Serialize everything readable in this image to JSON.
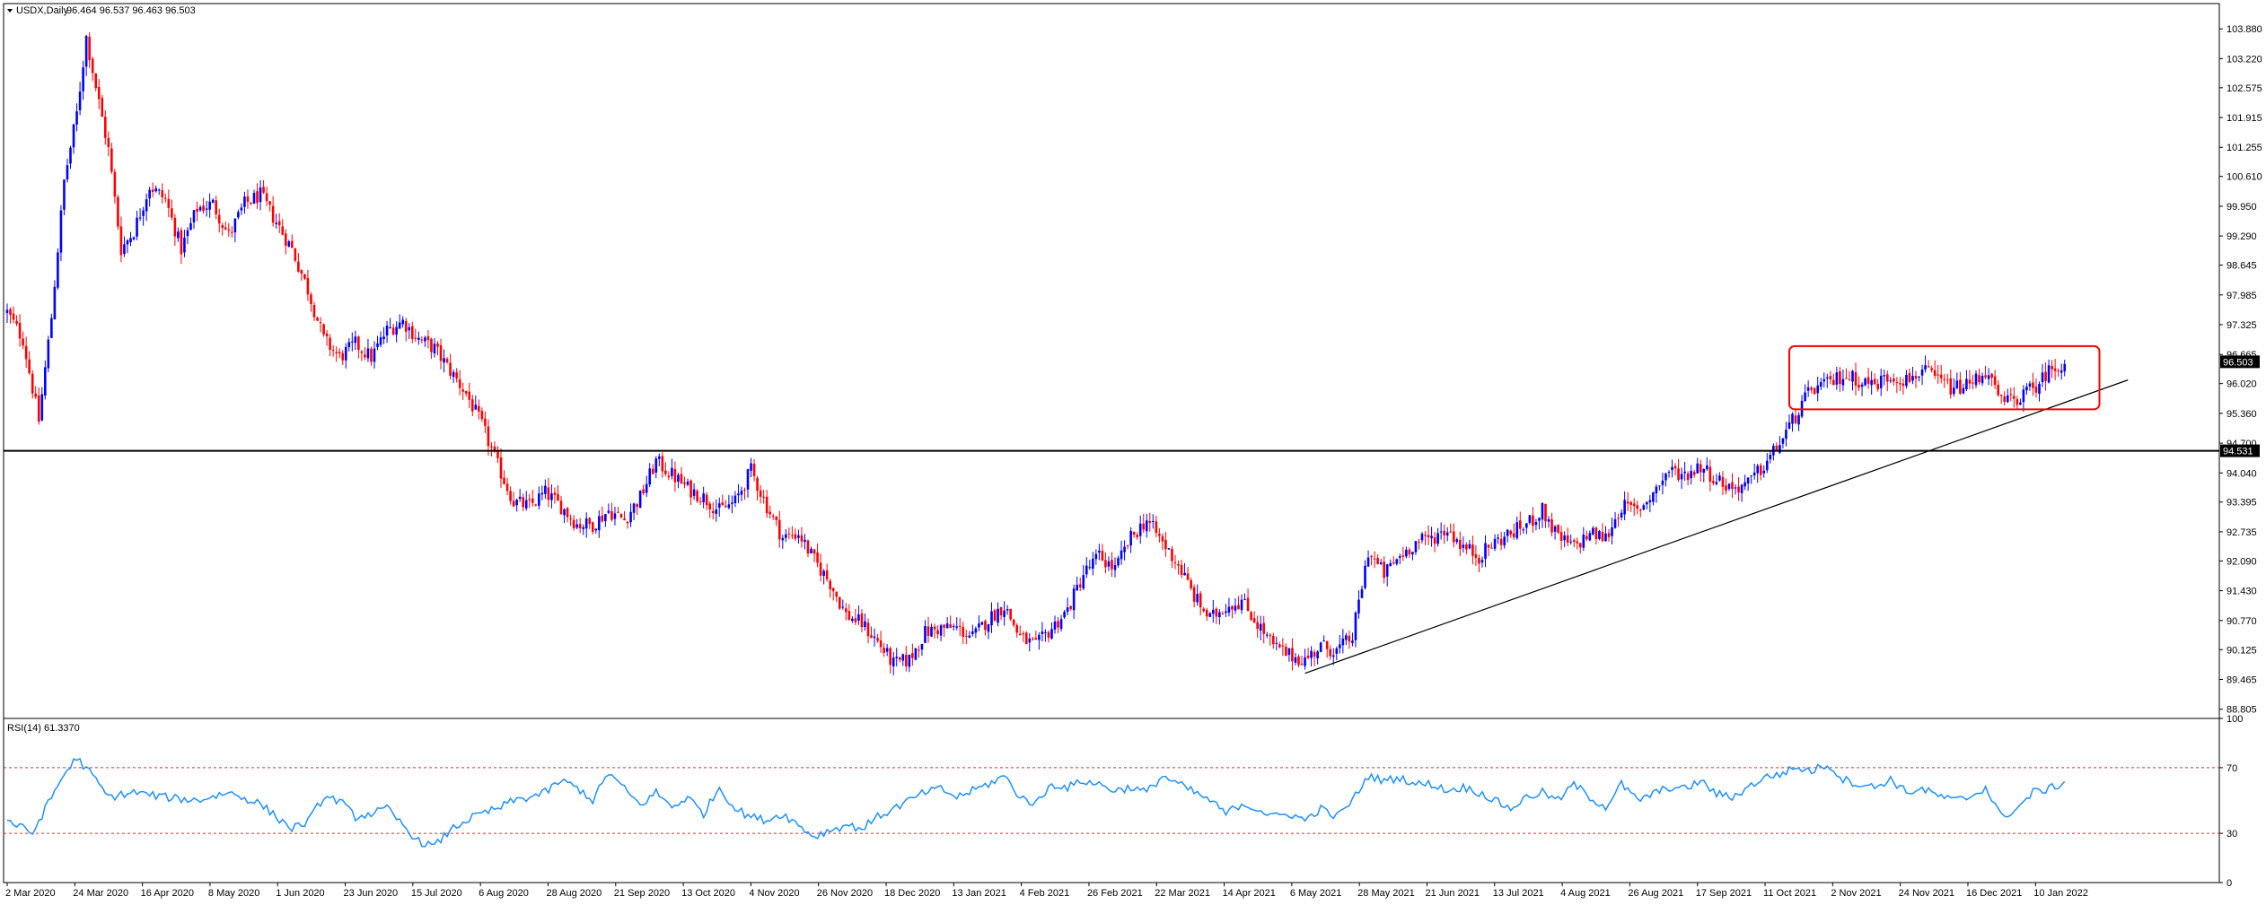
{
  "window": {
    "title": "USDX,Daily",
    "ohlc": "96.464 96.537 96.463 96.503"
  },
  "colors": {
    "bull": "#0000ff",
    "bear": "#ff0000",
    "rsi_line": "#1e90ff",
    "rsi_levels": "#d83030",
    "box": "#ff0000",
    "hline": "#000000",
    "trendline": "#000000"
  },
  "chart_data": [
    {
      "type": "candlestick",
      "title": "USDX,Daily",
      "ylim": [
        88.6,
        104.4
      ],
      "price_ticks": [
        "103.880",
        "103.220",
        "102.575",
        "101.915",
        "101.255",
        "100.610",
        "99.950",
        "99.290",
        "98.645",
        "97.985",
        "97.325",
        "96.665",
        "96.020",
        "95.360",
        "94.700",
        "94.040",
        "93.395",
        "92.735",
        "92.090",
        "91.430",
        "90.770",
        "90.125",
        "89.465",
        "88.805"
      ],
      "current_price_label": "96.503",
      "hline_label": "94.531",
      "date_ticks": [
        "2 Mar 2020",
        "24 Mar 2020",
        "16 Apr 2020",
        "8 May 2020",
        "1 Jun 2020",
        "23 Jun 2020",
        "15 Jul 2020",
        "6 Aug 2020",
        "28 Aug 2020",
        "21 Sep 2020",
        "13 Oct 2020",
        "4 Nov 2020",
        "26 Nov 2020",
        "18 Dec 2020",
        "13 Jan 2021",
        "4 Feb 2021",
        "26 Feb 2021",
        "22 Mar 2021",
        "14 Apr 2021",
        "6 May 2021",
        "28 May 2021",
        "21 Jun 2021",
        "13 Jul 2021",
        "4 Aug 2021",
        "26 Aug 2021",
        "17 Sep 2021",
        "11 Oct 2021",
        "2 Nov 2021",
        "24 Nov 2021",
        "16 Dec 2021",
        "10 Jan 2022"
      ],
      "price_path": [
        [
          0,
          97.6
        ],
        [
          5,
          97.0
        ],
        [
          10,
          95.2
        ],
        [
          14,
          97.5
        ],
        [
          18,
          100.5
        ],
        [
          22,
          102.0
        ],
        [
          25,
          103.7
        ],
        [
          28,
          102.6
        ],
        [
          32,
          101.2
        ],
        [
          36,
          99.0
        ],
        [
          40,
          99.4
        ],
        [
          45,
          100.4
        ],
        [
          50,
          100.1
        ],
        [
          55,
          99.0
        ],
        [
          60,
          99.9
        ],
        [
          65,
          100.0
        ],
        [
          70,
          99.3
        ],
        [
          75,
          100.0
        ],
        [
          80,
          100.2
        ],
        [
          85,
          99.6
        ],
        [
          90,
          99.0
        ],
        [
          95,
          98.1
        ],
        [
          100,
          97.0
        ],
        [
          105,
          96.6
        ],
        [
          110,
          96.9
        ],
        [
          115,
          96.6
        ],
        [
          120,
          97.2
        ],
        [
          125,
          97.4
        ],
        [
          130,
          97.0
        ],
        [
          135,
          96.8
        ],
        [
          140,
          96.3
        ],
        [
          145,
          95.8
        ],
        [
          150,
          95.1
        ],
        [
          155,
          94.2
        ],
        [
          160,
          93.4
        ],
        [
          165,
          93.3
        ],
        [
          170,
          93.6
        ],
        [
          175,
          93.3
        ],
        [
          180,
          92.9
        ],
        [
          185,
          92.9
        ],
        [
          190,
          93.2
        ],
        [
          195,
          93.0
        ],
        [
          200,
          93.5
        ],
        [
          205,
          94.3
        ],
        [
          210,
          94.0
        ],
        [
          215,
          93.7
        ],
        [
          220,
          93.5
        ],
        [
          225,
          93.2
        ],
        [
          230,
          93.4
        ],
        [
          235,
          94.1
        ],
        [
          240,
          93.3
        ],
        [
          245,
          92.6
        ],
        [
          250,
          92.7
        ],
        [
          255,
          92.1
        ],
        [
          260,
          91.6
        ],
        [
          265,
          90.9
        ],
        [
          270,
          90.7
        ],
        [
          275,
          90.3
        ],
        [
          280,
          89.8
        ],
        [
          285,
          89.9
        ],
        [
          290,
          90.5
        ],
        [
          295,
          90.6
        ],
        [
          300,
          90.6
        ],
        [
          305,
          90.4
        ],
        [
          310,
          90.8
        ],
        [
          315,
          91.1
        ],
        [
          320,
          90.4
        ],
        [
          325,
          90.2
        ],
        [
          330,
          90.6
        ],
        [
          335,
          91.0
        ],
        [
          340,
          91.8
        ],
        [
          345,
          92.2
        ],
        [
          350,
          91.9
        ],
        [
          355,
          92.6
        ],
        [
          360,
          93.0
        ],
        [
          365,
          92.5
        ],
        [
          370,
          92.0
        ],
        [
          375,
          91.3
        ],
        [
          380,
          90.8
        ],
        [
          385,
          91.1
        ],
        [
          390,
          91.2
        ],
        [
          395,
          90.7
        ],
        [
          400,
          90.2
        ],
        [
          405,
          90.0
        ],
        [
          410,
          89.9
        ],
        [
          415,
          90.2
        ],
        [
          420,
          90.1
        ],
        [
          425,
          90.4
        ],
        [
          430,
          92.3
        ],
        [
          435,
          91.8
        ],
        [
          440,
          92.2
        ],
        [
          445,
          92.5
        ],
        [
          450,
          92.6
        ],
        [
          455,
          92.8
        ],
        [
          460,
          92.4
        ],
        [
          465,
          92.2
        ],
        [
          470,
          92.5
        ],
        [
          475,
          92.7
        ],
        [
          480,
          92.9
        ],
        [
          485,
          93.2
        ],
        [
          490,
          92.6
        ],
        [
          495,
          92.4
        ],
        [
          500,
          92.7
        ],
        [
          505,
          92.6
        ],
        [
          510,
          93.3
        ],
        [
          515,
          93.2
        ],
        [
          520,
          93.6
        ],
        [
          525,
          94.1
        ],
        [
          530,
          94.0
        ],
        [
          535,
          94.2
        ],
        [
          540,
          93.9
        ],
        [
          545,
          93.7
        ],
        [
          550,
          93.8
        ],
        [
          555,
          94.2
        ],
        [
          560,
          94.7
        ],
        [
          565,
          95.3
        ],
        [
          570,
          95.9
        ],
        [
          575,
          96.0
        ],
        [
          580,
          96.2
        ],
        [
          585,
          96.1
        ],
        [
          590,
          96.0
        ],
        [
          595,
          96.2
        ],
        [
          600,
          96.1
        ],
        [
          605,
          96.3
        ],
        [
          610,
          96.1
        ],
        [
          615,
          95.9
        ],
        [
          620,
          96.0
        ],
        [
          625,
          96.3
        ],
        [
          630,
          95.6
        ],
        [
          635,
          95.7
        ],
        [
          640,
          95.9
        ],
        [
          645,
          96.3
        ],
        [
          650,
          96.5
        ]
      ],
      "hline_value": 94.531,
      "trendline": {
        "x1": 410,
        "y1": 89.6,
        "x2": 670,
        "y2": 96.1
      },
      "box": {
        "x1": 563,
        "y1": 96.85,
        "x2": 661,
        "y2": 95.45
      }
    },
    {
      "type": "line",
      "title": "RSI(14) 61.3370",
      "ylim": [
        0,
        100
      ],
      "ticks": [
        "100",
        "70",
        "30",
        "0"
      ],
      "levels": [
        70,
        30
      ],
      "rsi_path": [
        [
          0,
          38
        ],
        [
          8,
          30
        ],
        [
          14,
          52
        ],
        [
          18,
          66
        ],
        [
          22,
          76
        ],
        [
          27,
          65
        ],
        [
          32,
          52
        ],
        [
          40,
          55
        ],
        [
          50,
          52
        ],
        [
          60,
          50
        ],
        [
          70,
          55
        ],
        [
          80,
          48
        ],
        [
          85,
          40
        ],
        [
          90,
          33
        ],
        [
          95,
          37
        ],
        [
          100,
          52
        ],
        [
          105,
          50
        ],
        [
          110,
          40
        ],
        [
          115,
          42
        ],
        [
          120,
          45
        ],
        [
          125,
          35
        ],
        [
          130,
          25
        ],
        [
          135,
          22
        ],
        [
          140,
          32
        ],
        [
          145,
          38
        ],
        [
          150,
          42
        ],
        [
          155,
          45
        ],
        [
          160,
          50
        ],
        [
          165,
          52
        ],
        [
          170,
          55
        ],
        [
          175,
          62
        ],
        [
          180,
          58
        ],
        [
          185,
          50
        ],
        [
          190,
          67
        ],
        [
          195,
          57
        ],
        [
          200,
          47
        ],
        [
          205,
          55
        ],
        [
          210,
          46
        ],
        [
          215,
          52
        ],
        [
          220,
          42
        ],
        [
          225,
          58
        ],
        [
          230,
          45
        ],
        [
          235,
          40
        ],
        [
          240,
          38
        ],
        [
          245,
          42
        ],
        [
          250,
          35
        ],
        [
          255,
          28
        ],
        [
          260,
          32
        ],
        [
          265,
          35
        ],
        [
          270,
          33
        ],
        [
          275,
          40
        ],
        [
          280,
          45
        ],
        [
          285,
          50
        ],
        [
          290,
          55
        ],
        [
          295,
          57
        ],
        [
          300,
          52
        ],
        [
          305,
          56
        ],
        [
          310,
          60
        ],
        [
          315,
          65
        ],
        [
          320,
          52
        ],
        [
          325,
          48
        ],
        [
          330,
          60
        ],
        [
          335,
          58
        ],
        [
          340,
          62
        ],
        [
          345,
          60
        ],
        [
          350,
          56
        ],
        [
          355,
          58
        ],
        [
          360,
          55
        ],
        [
          365,
          65
        ],
        [
          370,
          60
        ],
        [
          375,
          55
        ],
        [
          380,
          50
        ],
        [
          385,
          42
        ],
        [
          390,
          48
        ],
        [
          395,
          45
        ],
        [
          400,
          40
        ],
        [
          405,
          42
        ],
        [
          410,
          38
        ],
        [
          415,
          45
        ],
        [
          420,
          40
        ],
        [
          425,
          50
        ],
        [
          430,
          65
        ],
        [
          435,
          62
        ],
        [
          440,
          64
        ],
        [
          445,
          60
        ],
        [
          450,
          60
        ],
        [
          455,
          56
        ],
        [
          460,
          58
        ],
        [
          465,
          55
        ],
        [
          470,
          50
        ],
        [
          475,
          45
        ],
        [
          480,
          52
        ],
        [
          485,
          55
        ],
        [
          490,
          50
        ],
        [
          495,
          60
        ],
        [
          500,
          52
        ],
        [
          505,
          46
        ],
        [
          510,
          60
        ],
        [
          515,
          50
        ],
        [
          520,
          54
        ],
        [
          525,
          58
        ],
        [
          530,
          57
        ],
        [
          535,
          62
        ],
        [
          540,
          54
        ],
        [
          545,
          52
        ],
        [
          550,
          58
        ],
        [
          555,
          64
        ],
        [
          560,
          66
        ],
        [
          565,
          70
        ],
        [
          570,
          68
        ],
        [
          575,
          72
        ],
        [
          580,
          63
        ],
        [
          585,
          60
        ],
        [
          590,
          58
        ],
        [
          595,
          63
        ],
        [
          600,
          55
        ],
        [
          605,
          57
        ],
        [
          610,
          53
        ],
        [
          615,
          50
        ],
        [
          620,
          52
        ],
        [
          625,
          58
        ],
        [
          630,
          40
        ],
        [
          635,
          45
        ],
        [
          640,
          55
        ],
        [
          645,
          57
        ],
        [
          650,
          61
        ]
      ]
    }
  ]
}
